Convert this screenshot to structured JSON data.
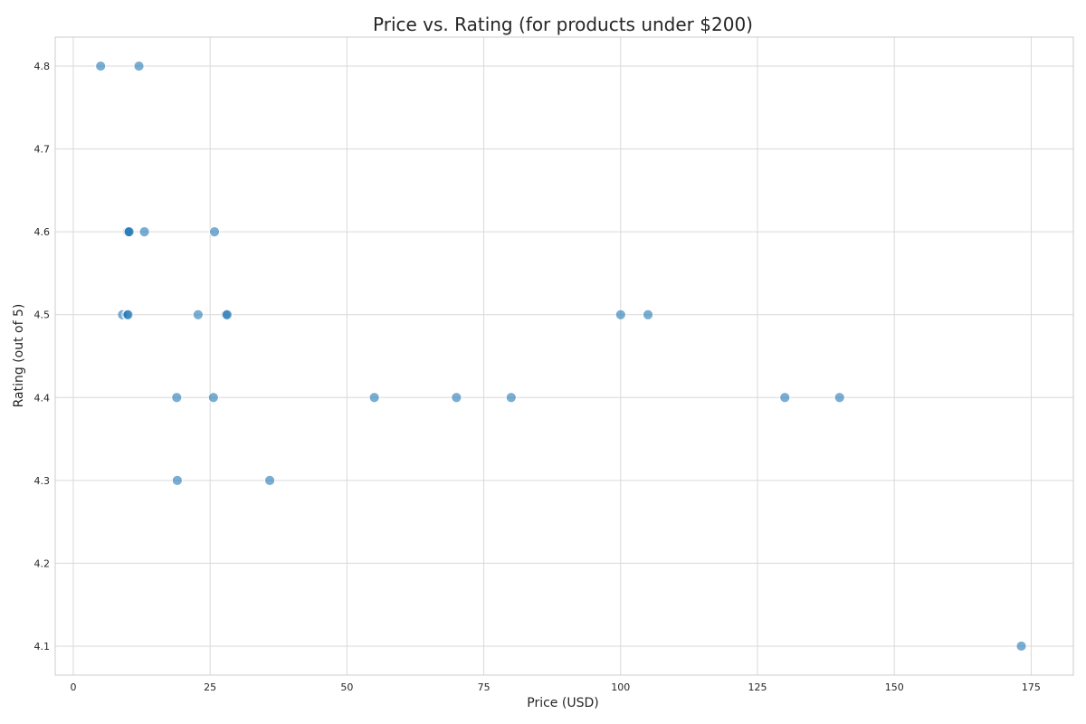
{
  "chart_data": {
    "type": "scatter",
    "title": "Price vs. Rating (for products under $200)",
    "xlabel": "Price (USD)",
    "ylabel": "Rating (out of 5)",
    "xlim": [
      -3.3,
      182.7
    ],
    "ylim": [
      4.065,
      4.835
    ],
    "xticks": [
      0,
      25,
      50,
      75,
      100,
      125,
      150,
      175
    ],
    "yticks": [
      4.1,
      4.2,
      4.3,
      4.4,
      4.5,
      4.6,
      4.7,
      4.8
    ],
    "xtick_labels": [
      "0",
      "25",
      "50",
      "75",
      "100",
      "125",
      "150",
      "175"
    ],
    "ytick_labels": [
      "4.1",
      "4.2",
      "4.3",
      "4.4",
      "4.5",
      "4.6",
      "4.7",
      "4.8"
    ],
    "grid": true,
    "point_color": "#1f77b4",
    "points": [
      {
        "x": 5,
        "y": 4.8
      },
      {
        "x": 12,
        "y": 4.8
      },
      {
        "x": 9.9,
        "y": 4.6
      },
      {
        "x": 10.1,
        "y": 4.6
      },
      {
        "x": 10.2,
        "y": 4.6
      },
      {
        "x": 13,
        "y": 4.6
      },
      {
        "x": 25.8,
        "y": 4.6
      },
      {
        "x": 9,
        "y": 4.5
      },
      {
        "x": 9.8,
        "y": 4.5
      },
      {
        "x": 10,
        "y": 4.5
      },
      {
        "x": 22.8,
        "y": 4.5
      },
      {
        "x": 27.9,
        "y": 4.5
      },
      {
        "x": 28.1,
        "y": 4.5
      },
      {
        "x": 100,
        "y": 4.5
      },
      {
        "x": 105,
        "y": 4.5
      },
      {
        "x": 18.9,
        "y": 4.4
      },
      {
        "x": 25.6,
        "y": 4.4
      },
      {
        "x": 55,
        "y": 4.4
      },
      {
        "x": 70,
        "y": 4.4
      },
      {
        "x": 80,
        "y": 4.4
      },
      {
        "x": 130,
        "y": 4.4
      },
      {
        "x": 140,
        "y": 4.4
      },
      {
        "x": 19,
        "y": 4.3
      },
      {
        "x": 35.9,
        "y": 4.3
      },
      {
        "x": 173.2,
        "y": 4.1
      }
    ]
  }
}
